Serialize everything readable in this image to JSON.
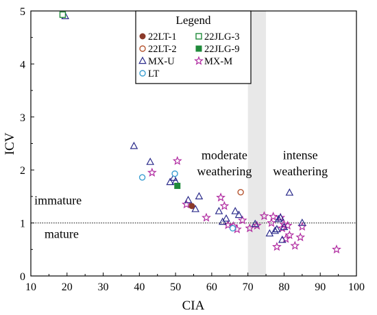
{
  "chart_data": {
    "type": "scatter",
    "title": "",
    "xlabel": "CIA",
    "ylabel": "ICV",
    "xlim": [
      10,
      100
    ],
    "ylim": [
      0,
      5
    ],
    "xticks": [
      "10",
      "20",
      "30",
      "40",
      "50",
      "60",
      "70",
      "80",
      "90",
      "100"
    ],
    "yticks": [
      "0",
      "1",
      "2",
      "3",
      "4",
      "5"
    ],
    "reference_line": {
      "y": 1,
      "style": "dotted"
    },
    "shaded_band": {
      "x": [
        70,
        75
      ],
      "color": "#e8e8e8"
    },
    "annotations": [
      {
        "text": "immature",
        "x": 17.5,
        "y": 1.35
      },
      {
        "text": "mature",
        "x": 18.5,
        "y": 0.72
      },
      {
        "text": "moderate",
        "x": 63.5,
        "y": 2.2
      },
      {
        "text": "weathering",
        "x": 63.5,
        "y": 1.9
      },
      {
        "text": "intense",
        "x": 84.5,
        "y": 2.2
      },
      {
        "text": "weathering",
        "x": 84.5,
        "y": 1.9
      }
    ],
    "legend": {
      "title": "Legend",
      "placement": "top-center"
    },
    "series": [
      {
        "name": "22LT-1",
        "marker": "circle-filled",
        "color": "#8b3a2a",
        "points": [
          [
            54.5,
            1.32
          ]
        ]
      },
      {
        "name": "22LT-2",
        "marker": "circle-open",
        "color": "#b5542f",
        "points": [
          [
            68.0,
            1.58
          ]
        ]
      },
      {
        "name": "MX-U",
        "marker": "triangle-open",
        "color": "#2a2a8a",
        "points": [
          [
            19.5,
            4.9
          ],
          [
            38.5,
            2.45
          ],
          [
            43.0,
            2.15
          ],
          [
            48.5,
            1.77
          ],
          [
            49.5,
            1.85
          ],
          [
            50.0,
            1.78
          ],
          [
            53.5,
            1.43
          ],
          [
            55.5,
            1.26
          ],
          [
            56.5,
            1.5
          ],
          [
            62.0,
            1.22
          ],
          [
            63.0,
            1.02
          ],
          [
            64.0,
            1.08
          ],
          [
            66.5,
            1.22
          ],
          [
            67.5,
            1.15
          ],
          [
            72.0,
            0.98
          ],
          [
            76.0,
            0.8
          ],
          [
            77.5,
            0.85
          ],
          [
            78.0,
            0.88
          ],
          [
            78.5,
            1.07
          ],
          [
            79.0,
            1.1
          ],
          [
            79.5,
            0.68
          ],
          [
            80.0,
            0.92
          ],
          [
            81.5,
            1.57
          ],
          [
            85.0,
            1.0
          ]
        ]
      },
      {
        "name": "LT",
        "marker": "circle-open",
        "color": "#3a9ed1",
        "points": [
          [
            40.8,
            1.86
          ],
          [
            49.8,
            1.93
          ],
          [
            65.8,
            0.9
          ]
        ]
      },
      {
        "name": "22JLG-3",
        "marker": "square-open",
        "color": "#1f8a3a",
        "points": [
          [
            18.8,
            4.93
          ]
        ]
      },
      {
        "name": "22JLG-9",
        "marker": "square-filled",
        "color": "#1f8a3a",
        "points": [
          [
            50.5,
            1.7
          ]
        ]
      },
      {
        "name": "MX-M",
        "marker": "star-open",
        "color": "#b02aa0",
        "points": [
          [
            43.5,
            1.95
          ],
          [
            50.5,
            2.17
          ],
          [
            53.0,
            1.35
          ],
          [
            58.5,
            1.1
          ],
          [
            62.5,
            1.48
          ],
          [
            63.5,
            1.32
          ],
          [
            64.5,
            0.96
          ],
          [
            66.0,
            0.94
          ],
          [
            67.0,
            0.88
          ],
          [
            68.5,
            1.05
          ],
          [
            70.5,
            0.9
          ],
          [
            72.5,
            0.95
          ],
          [
            74.5,
            1.13
          ],
          [
            76.5,
            1.0
          ],
          [
            77.0,
            1.12
          ],
          [
            78.0,
            0.55
          ],
          [
            79.0,
            1.1
          ],
          [
            79.5,
            0.9
          ],
          [
            80.0,
            0.97
          ],
          [
            80.5,
            0.7
          ],
          [
            81.0,
            0.95
          ],
          [
            81.5,
            0.77
          ],
          [
            83.0,
            0.57
          ],
          [
            84.5,
            0.73
          ],
          [
            85.0,
            0.93
          ],
          [
            94.5,
            0.5
          ]
        ]
      }
    ]
  }
}
